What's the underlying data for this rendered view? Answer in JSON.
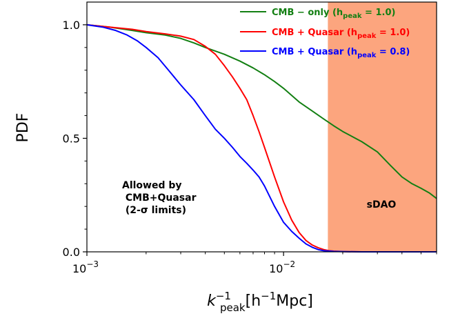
{
  "chart_data": {
    "type": "line",
    "ylabel": "PDF",
    "xlabel": {
      "base": "k",
      "sup": "−1",
      "sub": "peak",
      "unit_pre": "[h",
      "unit_sup": "−1",
      "unit_post": "Mpc]"
    },
    "xscale": "log",
    "xlim": [
      0.001,
      0.06
    ],
    "ylim": [
      0.0,
      1.1
    ],
    "xticks": [
      {
        "value": 0.001,
        "mantissa": "10",
        "exp": "−3"
      },
      {
        "value": 0.01,
        "mantissa": "10",
        "exp": "−2"
      }
    ],
    "yticks": [
      {
        "value": 0.0,
        "label": "0.0"
      },
      {
        "value": 0.5,
        "label": "0.5"
      },
      {
        "value": 1.0,
        "label": "1.0"
      }
    ],
    "legend_position": "top-right",
    "shaded_region": {
      "x_start": 0.0168,
      "x_end": 0.06,
      "color": "#fca57e",
      "label": "sDAO"
    },
    "annotation": {
      "lines": [
        "Allowed by",
        " CMB+Quasar",
        " (2-σ limits)"
      ]
    },
    "series": [
      {
        "name_main": "CMB − only (h",
        "name_sub": "peak",
        "name_end": " = 1.0)",
        "color": "#127f12",
        "x": [
          0.001,
          0.0013,
          0.0017,
          0.002,
          0.0025,
          0.003,
          0.0035,
          0.004,
          0.005,
          0.006,
          0.007,
          0.008,
          0.009,
          0.01,
          0.012,
          0.014,
          0.016,
          0.018,
          0.02,
          0.025,
          0.03,
          0.035,
          0.04,
          0.045,
          0.05,
          0.055,
          0.06
        ],
        "y": [
          1.0,
          0.99,
          0.975,
          0.965,
          0.955,
          0.94,
          0.92,
          0.9,
          0.87,
          0.84,
          0.81,
          0.78,
          0.75,
          0.72,
          0.66,
          0.62,
          0.585,
          0.555,
          0.53,
          0.485,
          0.44,
          0.38,
          0.33,
          0.3,
          0.28,
          0.26,
          0.235
        ]
      },
      {
        "name_main": "CMB + Quasar (h",
        "name_sub": "peak",
        "name_end": " = 1.0)",
        "color": "#ff0000",
        "x": [
          0.001,
          0.0013,
          0.0017,
          0.002,
          0.0025,
          0.003,
          0.0035,
          0.004,
          0.0045,
          0.005,
          0.0055,
          0.006,
          0.0065,
          0.007,
          0.0075,
          0.008,
          0.009,
          0.01,
          0.011,
          0.012,
          0.013,
          0.014,
          0.015,
          0.016,
          0.017,
          0.018,
          0.02,
          0.025,
          0.03,
          0.04,
          0.06
        ],
        "y": [
          1.0,
          0.99,
          0.98,
          0.97,
          0.96,
          0.95,
          0.935,
          0.905,
          0.87,
          0.82,
          0.77,
          0.72,
          0.67,
          0.6,
          0.53,
          0.46,
          0.33,
          0.22,
          0.14,
          0.085,
          0.05,
          0.03,
          0.018,
          0.01,
          0.005,
          0.003,
          0.001,
          0.0,
          0.0,
          0.0,
          0.0
        ]
      },
      {
        "name_main": "CMB + Quasar (h",
        "name_sub": "peak",
        "name_end": " = 0.8)",
        "color": "#0000ff",
        "x": [
          0.001,
          0.0012,
          0.0014,
          0.0016,
          0.0018,
          0.002,
          0.0023,
          0.0026,
          0.003,
          0.0035,
          0.004,
          0.0045,
          0.005,
          0.0055,
          0.006,
          0.0065,
          0.007,
          0.0075,
          0.008,
          0.009,
          0.01,
          0.011,
          0.012,
          0.013,
          0.014,
          0.015,
          0.016,
          0.018,
          0.02,
          0.025,
          0.03,
          0.04,
          0.06
        ],
        "y": [
          1.0,
          0.99,
          0.975,
          0.955,
          0.93,
          0.9,
          0.855,
          0.8,
          0.735,
          0.67,
          0.6,
          0.54,
          0.5,
          0.46,
          0.42,
          0.39,
          0.36,
          0.33,
          0.29,
          0.2,
          0.13,
          0.09,
          0.06,
          0.035,
          0.02,
          0.01,
          0.005,
          0.002,
          0.001,
          0.0,
          0.0,
          0.0,
          0.0
        ]
      }
    ]
  }
}
